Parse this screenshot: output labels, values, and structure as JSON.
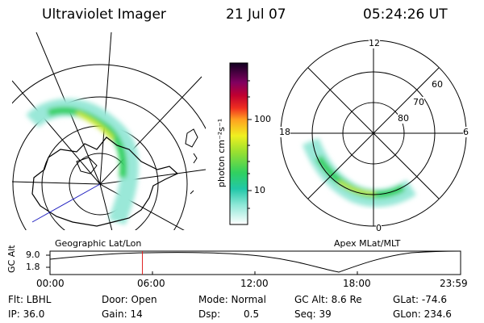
{
  "header": {
    "instrument": "Ultraviolet Imager",
    "date": "21 Jul 07",
    "time": "05:24:26 UT"
  },
  "colorbar": {
    "unit_label": "photon cm⁻²s⁻¹",
    "ticks": [
      "100",
      "10"
    ]
  },
  "left_panel": {
    "caption": "Geographic Lat/Lon"
  },
  "right_panel": {
    "caption": "Apex MLat/MLT",
    "mlt_labels": [
      "12",
      "18",
      "6",
      "0"
    ],
    "lat_labels": [
      "60",
      "70",
      "80"
    ]
  },
  "timeline": {
    "y_axis_label": "GC Alt",
    "y_ticks": [
      "9.0",
      "1.8"
    ],
    "x_ticks": [
      "00:00",
      "06:00",
      "12:00",
      "18:00",
      "23:59"
    ],
    "current_time_fraction": 0.225
  },
  "status": {
    "filter": "Flt: LBHL",
    "ip": "IP: 36.0",
    "door": "Door: Open",
    "gain": "Gain: 14",
    "mode": "Mode: Normal",
    "dsp_label": "Dsp:",
    "dsp_value": "0.5",
    "gc_alt": "GC Alt: 8.6 Re",
    "seq": "Seq: 39",
    "glat": "GLat: -74.6",
    "glon": "GLon: 234.6"
  }
}
